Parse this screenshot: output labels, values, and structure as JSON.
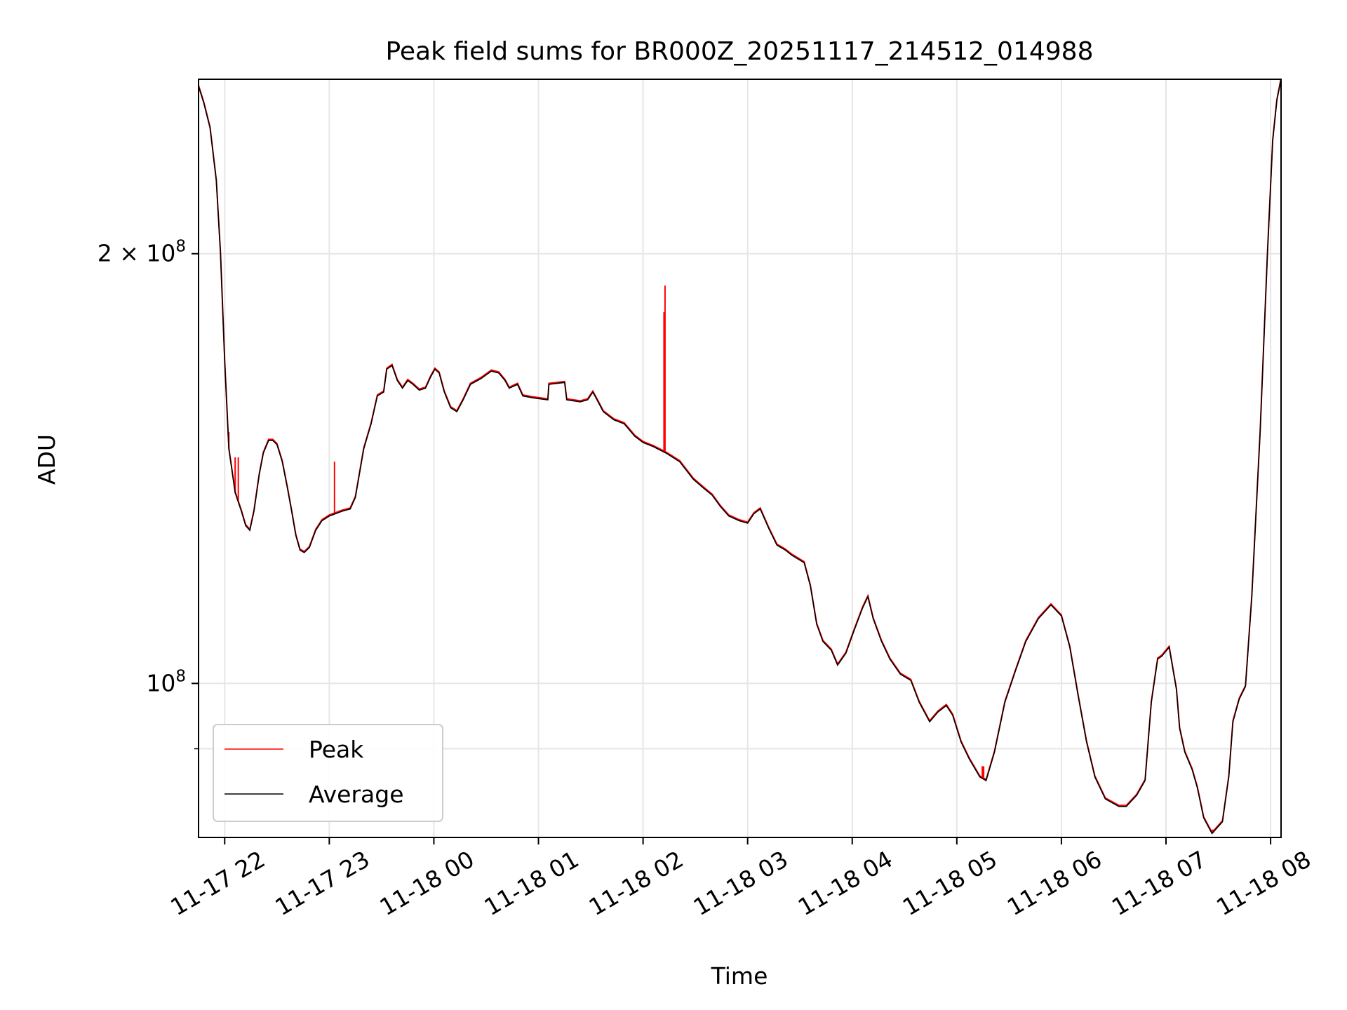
{
  "chart_data": {
    "type": "line",
    "title": "Peak field sums for BR000Z_20251117_214512_014988",
    "xlabel": "Time",
    "ylabel": "ADU",
    "yscale": "log",
    "ylim": [
      78000000,
      265000000
    ],
    "xlim_hours_since_2025_11_17_21_00": [
      0.75,
      11.1
    ],
    "grid": true,
    "legend_position": "lower-left",
    "x_ticks": [
      {
        "t": 1,
        "label": "11-17 22"
      },
      {
        "t": 2,
        "label": "11-17 23"
      },
      {
        "t": 3,
        "label": "11-18 00"
      },
      {
        "t": 4,
        "label": "11-18 01"
      },
      {
        "t": 5,
        "label": "11-18 02"
      },
      {
        "t": 6,
        "label": "11-18 03"
      },
      {
        "t": 7,
        "label": "11-18 04"
      },
      {
        "t": 8,
        "label": "11-18 05"
      },
      {
        "t": 9,
        "label": "11-18 06"
      },
      {
        "t": 10,
        "label": "11-18 07"
      },
      {
        "t": 11,
        "label": "11-18 08"
      }
    ],
    "y_ticks": [
      {
        "v": 100000000,
        "base": "10",
        "exp": "8",
        "mantissa": ""
      },
      {
        "v": 200000000,
        "base": "10",
        "exp": "8",
        "mantissa": "2"
      }
    ],
    "y_minor_ticks": [
      90000000
    ],
    "series": [
      {
        "name": "Peak",
        "color": "#ff0000",
        "spikes": [
          {
            "t": 1.04,
            "value": 150000000
          },
          {
            "t": 1.1,
            "value": 144000000
          },
          {
            "t": 1.13,
            "value": 144000000
          },
          {
            "t": 2.05,
            "value": 143000000
          },
          {
            "t": 5.2,
            "value": 182000000
          },
          {
            "t": 5.21,
            "value": 190000000
          }
        ],
        "low_noise": [
          {
            "t": 10.4,
            "value": 79500000
          },
          {
            "t": 10.45,
            "value": 79000000
          },
          {
            "t": 8.25,
            "value": 87500000
          }
        ]
      },
      {
        "name": "Average",
        "color": "#000000",
        "points": [
          [
            0.75,
            262000000
          ],
          [
            0.8,
            255000000
          ],
          [
            0.86,
            245000000
          ],
          [
            0.92,
            225000000
          ],
          [
            0.96,
            200000000
          ],
          [
            1.0,
            168000000
          ],
          [
            1.04,
            146000000
          ],
          [
            1.1,
            136000000
          ],
          [
            1.16,
            132000000
          ],
          [
            1.2,
            129000000
          ],
          [
            1.24,
            128000000
          ],
          [
            1.28,
            132000000
          ],
          [
            1.33,
            140000000
          ],
          [
            1.37,
            145000000
          ],
          [
            1.42,
            148000000
          ],
          [
            1.46,
            148000000
          ],
          [
            1.5,
            147000000
          ],
          [
            1.55,
            143000000
          ],
          [
            1.6,
            137000000
          ],
          [
            1.64,
            132000000
          ],
          [
            1.68,
            127000000
          ],
          [
            1.72,
            124000000
          ],
          [
            1.76,
            123500000
          ],
          [
            1.81,
            124500000
          ],
          [
            1.87,
            128000000
          ],
          [
            1.93,
            130000000
          ],
          [
            2.0,
            131000000
          ],
          [
            2.06,
            131500000
          ],
          [
            2.12,
            132000000
          ],
          [
            2.2,
            132500000
          ],
          [
            2.25,
            135000000
          ],
          [
            2.33,
            146000000
          ],
          [
            2.4,
            152000000
          ],
          [
            2.46,
            159000000
          ],
          [
            2.52,
            160000000
          ],
          [
            2.55,
            166000000
          ],
          [
            2.6,
            167000000
          ],
          [
            2.65,
            163000000
          ],
          [
            2.7,
            161000000
          ],
          [
            2.75,
            163000000
          ],
          [
            2.8,
            162000000
          ],
          [
            2.86,
            160500000
          ],
          [
            2.92,
            161000000
          ],
          [
            2.97,
            164000000
          ],
          [
            3.01,
            166000000
          ],
          [
            3.05,
            165000000
          ],
          [
            3.1,
            160000000
          ],
          [
            3.16,
            156000000
          ],
          [
            3.22,
            155000000
          ],
          [
            3.28,
            158000000
          ],
          [
            3.35,
            162000000
          ],
          [
            3.45,
            163500000
          ],
          [
            3.55,
            165500000
          ],
          [
            3.62,
            165000000
          ],
          [
            3.68,
            163000000
          ],
          [
            3.72,
            161000000
          ],
          [
            3.8,
            162000000
          ],
          [
            3.85,
            159000000
          ],
          [
            3.95,
            158500000
          ],
          [
            4.09,
            158000000
          ],
          [
            4.1,
            162000000
          ],
          [
            4.25,
            162500000
          ],
          [
            4.27,
            158000000
          ],
          [
            4.4,
            157500000
          ],
          [
            4.47,
            158000000
          ],
          [
            4.52,
            160000000
          ],
          [
            4.56,
            158000000
          ],
          [
            4.62,
            155000000
          ],
          [
            4.72,
            153000000
          ],
          [
            4.82,
            152000000
          ],
          [
            4.92,
            149000000
          ],
          [
            5.0,
            147500000
          ],
          [
            5.1,
            146500000
          ],
          [
            5.22,
            145000000
          ],
          [
            5.35,
            143000000
          ],
          [
            5.48,
            139000000
          ],
          [
            5.58,
            137000000
          ],
          [
            5.66,
            135500000
          ],
          [
            5.74,
            133000000
          ],
          [
            5.82,
            131000000
          ],
          [
            5.92,
            130000000
          ],
          [
            6.0,
            129500000
          ],
          [
            6.06,
            131500000
          ],
          [
            6.12,
            132500000
          ],
          [
            6.2,
            128500000
          ],
          [
            6.28,
            125000000
          ],
          [
            6.36,
            124000000
          ],
          [
            6.42,
            123000000
          ],
          [
            6.54,
            121500000
          ],
          [
            6.6,
            117000000
          ],
          [
            6.66,
            110000000
          ],
          [
            6.72,
            107000000
          ],
          [
            6.8,
            105500000
          ],
          [
            6.86,
            103000000
          ],
          [
            6.94,
            105000000
          ],
          [
            7.02,
            109000000
          ],
          [
            7.1,
            113000000
          ],
          [
            7.15,
            115000000
          ],
          [
            7.2,
            111000000
          ],
          [
            7.28,
            107000000
          ],
          [
            7.36,
            104000000
          ],
          [
            7.46,
            101500000
          ],
          [
            7.56,
            100500000
          ],
          [
            7.64,
            97000000
          ],
          [
            7.74,
            94000000
          ],
          [
            7.82,
            95500000
          ],
          [
            7.9,
            96500000
          ],
          [
            7.96,
            95000000
          ],
          [
            8.04,
            91000000
          ],
          [
            8.12,
            88500000
          ],
          [
            8.22,
            86000000
          ],
          [
            8.28,
            85500000
          ],
          [
            8.36,
            89500000
          ],
          [
            8.46,
            97000000
          ],
          [
            8.56,
            102000000
          ],
          [
            8.66,
            107000000
          ],
          [
            8.78,
            111000000
          ],
          [
            8.9,
            113500000
          ],
          [
            9.0,
            111500000
          ],
          [
            9.08,
            106000000
          ],
          [
            9.16,
            98000000
          ],
          [
            9.24,
            91000000
          ],
          [
            9.32,
            86000000
          ],
          [
            9.42,
            83000000
          ],
          [
            9.55,
            82000000
          ],
          [
            9.62,
            82000000
          ],
          [
            9.72,
            83500000
          ],
          [
            9.8,
            85500000
          ],
          [
            9.86,
            97000000
          ],
          [
            9.92,
            104000000
          ],
          [
            9.96,
            104500000
          ],
          [
            10.03,
            106000000
          ],
          [
            10.1,
            99000000
          ],
          [
            10.13,
            93000000
          ],
          [
            10.18,
            89500000
          ],
          [
            10.25,
            87000000
          ],
          [
            10.3,
            84500000
          ],
          [
            10.36,
            80500000
          ],
          [
            10.44,
            78500000
          ],
          [
            10.54,
            80000000
          ],
          [
            10.6,
            86000000
          ],
          [
            10.64,
            94000000
          ],
          [
            10.7,
            97500000
          ],
          [
            10.76,
            99500000
          ],
          [
            10.82,
            115000000
          ],
          [
            10.9,
            150000000
          ],
          [
            10.97,
            200000000
          ],
          [
            11.02,
            240000000
          ],
          [
            11.06,
            256000000
          ],
          [
            11.1,
            265000000
          ]
        ]
      }
    ]
  }
}
